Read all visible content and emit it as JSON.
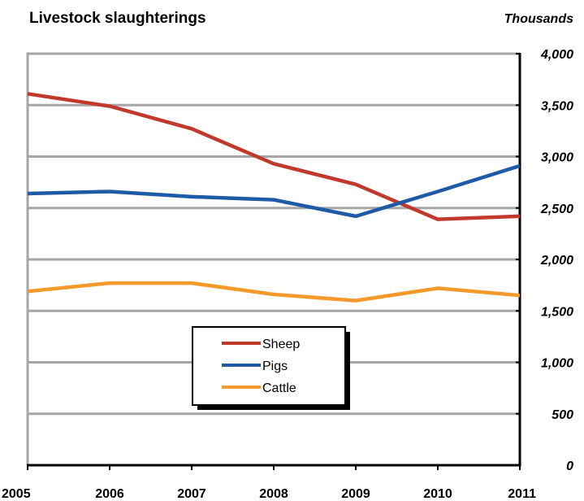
{
  "chart_data": {
    "type": "line",
    "title": "Livestock slaughterings",
    "units_label": "Thousands",
    "x": [
      "2005",
      "2006",
      "2007",
      "2008",
      "2009",
      "2010",
      "2011"
    ],
    "ylim": [
      0,
      4000
    ],
    "yticks": [
      0,
      500,
      1000,
      1500,
      2000,
      2500,
      3000,
      3500,
      4000
    ],
    "ytick_labels": [
      "0",
      "500",
      "1,000",
      "1,500",
      "2,000",
      "2,500",
      "3,000",
      "3,500",
      "4,000"
    ],
    "grid": true,
    "y_axis_side": "right",
    "legend_position": "lower-center",
    "series": [
      {
        "name": "Sheep",
        "color": "#C0392B",
        "values": [
          3610,
          3490,
          3270,
          2930,
          2730,
          2390,
          2420
        ]
      },
      {
        "name": "Pigs",
        "color": "#1F5AA6",
        "values": [
          2640,
          2660,
          2610,
          2580,
          2420,
          2660,
          2910
        ]
      },
      {
        "name": "Cattle",
        "color": "#F39A2B",
        "values": [
          1690,
          1770,
          1770,
          1660,
          1600,
          1720,
          1650
        ]
      }
    ]
  }
}
